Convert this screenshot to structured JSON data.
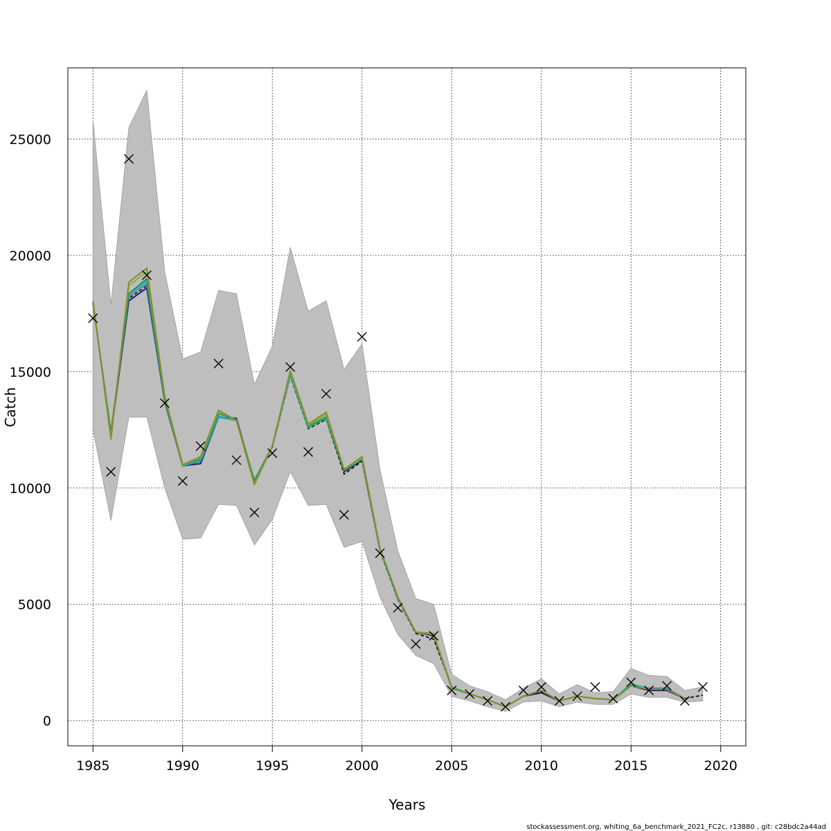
{
  "chart_data": {
    "type": "line",
    "xlabel": "Years",
    "ylabel": "Catch",
    "xlim": [
      1983.6,
      2021.4
    ],
    "ylim": [
      -1080,
      28060
    ],
    "xticks": [
      1985,
      1990,
      1995,
      2000,
      2005,
      2010,
      2015,
      2020
    ],
    "yticks": [
      0,
      5000,
      10000,
      15000,
      20000,
      25000
    ],
    "grid": true,
    "footer": "stockassessment.org, whiting_6a_benchmark_2021_FC2c, r13880 , git: c28bdc2a44ad",
    "colors": {
      "band": "#bebebe",
      "band_edge": "#9a9a9a",
      "observed": "#000000"
    },
    "confidence_band": {
      "x": [
        1985,
        1986,
        1987,
        1988,
        1989,
        1990,
        1991,
        1992,
        1993,
        1994,
        1995,
        1996,
        1997,
        1998,
        1999,
        2000,
        2001,
        2002,
        2003,
        2004,
        2005,
        2006,
        2007,
        2008,
        2009,
        2010,
        2011,
        2012,
        2013,
        2014,
        2015,
        2016,
        2017,
        2018,
        2019
      ],
      "lower": [
        12500,
        8600,
        13050,
        13050,
        10000,
        7800,
        7850,
        9300,
        9250,
        7550,
        8650,
        10700,
        9250,
        9300,
        7450,
        7700,
        5300,
        3700,
        2800,
        2450,
        1050,
        850,
        600,
        400,
        800,
        850,
        600,
        800,
        700,
        700,
        1150,
        1000,
        1000,
        800,
        850
      ],
      "upper": [
        25800,
        17900,
        25500,
        27100,
        19300,
        15550,
        15850,
        18500,
        18350,
        14450,
        16100,
        20350,
        17600,
        18050,
        15100,
        16200,
        10800,
        7300,
        5250,
        5000,
        2000,
        1500,
        1250,
        900,
        1400,
        1800,
        1150,
        1550,
        1200,
        1250,
        2250,
        1950,
        1900,
        1300,
        1450
      ]
    },
    "observed": {
      "name": "",
      "marker": "x",
      "x": [
        1985,
        1986,
        1987,
        1988,
        1989,
        1990,
        1991,
        1992,
        1993,
        1994,
        1995,
        1996,
        1997,
        1998,
        1999,
        2000,
        2001,
        2002,
        2003,
        2004,
        2005,
        2006,
        2007,
        2008,
        2009,
        2010,
        2011,
        2012,
        2013,
        2014,
        2015,
        2016,
        2017,
        2018,
        2019
      ],
      "y": [
        17300,
        10700,
        24150,
        19150,
        13650,
        10300,
        11800,
        15350,
        11200,
        8950,
        11500,
        15200,
        11550,
        14050,
        8850,
        16500,
        7200,
        4850,
        3300,
        3650,
        1300,
        1150,
        850,
        600,
        1300,
        1450,
        850,
        1050,
        1450,
        950,
        1650,
        1300,
        1500,
        850,
        1450
      ]
    },
    "series": [
      {
        "name": "",
        "color": "#000000",
        "dashed": true,
        "x": [
          1985,
          1986,
          1987,
          1988,
          1989,
          1990,
          1991,
          1992,
          1993,
          1994,
          1995,
          1996,
          1997,
          1998,
          1999,
          2000,
          2001,
          2002,
          2003,
          2004,
          2005,
          2006,
          2007,
          2008,
          2009,
          2010,
          2011,
          2012,
          2013,
          2014,
          2015,
          2016,
          2017,
          2018,
          2019
        ],
        "y": [
          17950,
          12300,
          18150,
          18700,
          13700,
          10950,
          11150,
          13100,
          12900,
          10250,
          11750,
          14800,
          12550,
          12950,
          10600,
          11150,
          7300,
          5200,
          3750,
          3500,
          1450,
          1150,
          900,
          600,
          1050,
          1250,
          850,
          1050,
          950,
          900,
          1500,
          1350,
          1350,
          950,
          1100
        ]
      },
      {
        "name": "",
        "color": "#191970",
        "dashed": false,
        "x": [
          1985,
          1986,
          1987,
          1988,
          1989,
          1990,
          1991,
          1992,
          1993,
          1994,
          1995,
          1996,
          1997,
          1998,
          1999,
          2000,
          2001,
          2002,
          2003,
          2004,
          2005,
          2006,
          2007,
          2008,
          2009,
          2010,
          2011,
          2012,
          2013,
          2014,
          2015,
          2016,
          2017,
          2018
        ],
        "y": [
          17950,
          12300,
          18050,
          18600,
          13700,
          10950,
          11050,
          13050,
          13000,
          10250,
          11800,
          14900,
          12600,
          13000,
          10700,
          11200,
          7350,
          5250,
          3800,
          3650,
          1450,
          1150,
          900,
          600,
          1050,
          1200,
          850,
          1050,
          950,
          900,
          1500,
          1300,
          1300,
          950
        ]
      },
      {
        "name": "",
        "color": "#2e8bc0",
        "dashed": false,
        "x": [
          1985,
          1986,
          1987,
          1988,
          1989,
          1990,
          1991,
          1992,
          1993,
          1994,
          1995,
          1996,
          1997,
          1998,
          1999,
          2000,
          2001,
          2002,
          2003,
          2004,
          2005,
          2006,
          2007,
          2008,
          2009,
          2010,
          2011,
          2012,
          2013,
          2014,
          2015,
          2016,
          2017,
          2018
        ],
        "y": [
          17950,
          12350,
          18250,
          18800,
          13750,
          10950,
          11150,
          13050,
          12900,
          10300,
          11800,
          14850,
          12600,
          13000,
          10750,
          11250,
          7350,
          5250,
          3800,
          3700,
          1450,
          1150,
          900,
          600,
          1050,
          1300,
          850,
          1050,
          950,
          900,
          1550,
          1400,
          1400,
          950
        ]
      },
      {
        "name": "",
        "color": "#20b2aa",
        "dashed": false,
        "x": [
          1985,
          1986,
          1987,
          1988,
          1989,
          1990,
          1991,
          1992,
          1993,
          1994,
          1995,
          1996,
          1997,
          1998,
          1999,
          2000,
          2001,
          2002,
          2003,
          2004,
          2005,
          2006,
          2007,
          2008,
          2009,
          2010,
          2011,
          2012,
          2013,
          2014,
          2015,
          2016,
          2017,
          2018
        ],
        "y": [
          17950,
          12400,
          18350,
          18900,
          13800,
          10950,
          11200,
          13100,
          12900,
          10350,
          11800,
          14900,
          12600,
          13000,
          10750,
          11250,
          7350,
          5250,
          3800,
          3700,
          1450,
          1150,
          900,
          600,
          1050,
          1300,
          850,
          1050,
          950,
          900,
          1600,
          1350,
          1350,
          950
        ]
      },
      {
        "name": "",
        "color": "#2e8b57",
        "dashed": false,
        "x": [
          1985,
          1986,
          1987,
          1988,
          1989,
          1990,
          1991,
          1992,
          1993,
          1994,
          1995,
          1996,
          1997,
          1998,
          1999,
          2000,
          2001,
          2002,
          2003,
          2004,
          2005,
          2006,
          2007,
          2008,
          2009,
          2010,
          2011,
          2012,
          2013,
          2014,
          2015,
          2016,
          2017,
          2018
        ],
        "y": [
          17950,
          12400,
          18350,
          19000,
          13800,
          11000,
          11250,
          13200,
          12950,
          10300,
          11800,
          15000,
          12650,
          13050,
          10750,
          11300,
          7400,
          5300,
          3800,
          3700,
          1400,
          1150,
          900,
          600,
          1050,
          1300,
          850,
          1050,
          950,
          900,
          1500,
          1350,
          1350,
          950
        ]
      },
      {
        "name": "",
        "color": "#7cb82f",
        "dashed": false,
        "x": [
          1985,
          1986,
          1987,
          1988,
          1989,
          1990,
          1991,
          1992,
          1993,
          1994,
          1995,
          1996,
          1997,
          1998,
          1999,
          2000,
          2001,
          2002,
          2003,
          2004,
          2005,
          2006,
          2007,
          2008,
          2009,
          2010,
          2011,
          2012,
          2013,
          2014,
          2015,
          2016,
          2017,
          2018
        ],
        "y": [
          18000,
          12200,
          18700,
          19300,
          13900,
          11000,
          11300,
          13300,
          12900,
          10200,
          11800,
          15000,
          12700,
          13150,
          10800,
          11300,
          7400,
          5300,
          3800,
          3700,
          1400,
          1150,
          900,
          600,
          1050,
          1300,
          850,
          1050,
          950,
          900,
          1500,
          1350,
          1350,
          950
        ]
      },
      {
        "name": "",
        "color": "#8b8b2a",
        "dashed": false,
        "x": [
          1985,
          1986,
          1987,
          1988,
          1989,
          1990,
          1991,
          1992,
          1993,
          1994,
          1995,
          1996,
          1997,
          1998,
          1999,
          2000,
          2001,
          2002,
          2003,
          2004,
          2005,
          2006,
          2007,
          2008,
          2009,
          2010,
          2011,
          2012,
          2013,
          2014,
          2015,
          2016,
          2017,
          2018
        ],
        "y": [
          18050,
          12100,
          18850,
          19450,
          13950,
          11000,
          11350,
          13350,
          12900,
          10150,
          11800,
          15050,
          12750,
          13250,
          10800,
          11350,
          7400,
          5300,
          3800,
          3750,
          1400,
          1150,
          900,
          600,
          1050,
          1300,
          850,
          1050,
          950,
          900,
          1500,
          1350,
          1350,
          950
        ]
      }
    ]
  }
}
